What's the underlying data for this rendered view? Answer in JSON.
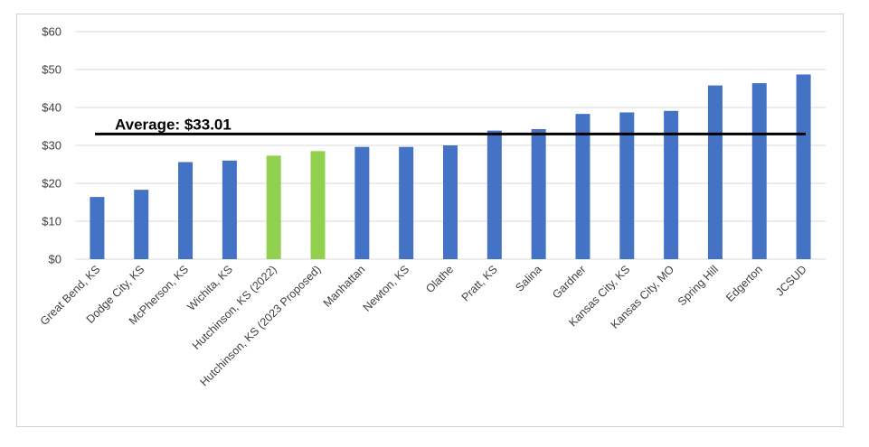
{
  "chart_data": {
    "type": "bar",
    "title": "",
    "xlabel": "",
    "ylabel": "",
    "ylim": [
      0,
      60
    ],
    "yticks": [
      0,
      10,
      20,
      30,
      40,
      50,
      60
    ],
    "ytick_labels": [
      "$0",
      "$10",
      "$20",
      "$30",
      "$40",
      "$50",
      "$60"
    ],
    "grid": true,
    "categories": [
      "Great Bend, KS",
      "Dodge City, KS",
      "McPherson, KS",
      "Wichita, KS",
      "Hutchinson, KS (2022)",
      "Hutchinson, KS (2023 Proposed)",
      "Manhattan",
      "Newton, KS",
      "Olathe",
      "Pratt, KS",
      "Salina",
      "Gardner",
      "Kansas City, KS",
      "Kansas City, MO",
      "Spring Hill",
      "Edgerton",
      "JCSUD"
    ],
    "values": [
      16.4,
      18.3,
      25.6,
      26.0,
      27.3,
      28.5,
      29.6,
      29.6,
      30.0,
      33.9,
      34.3,
      38.3,
      38.7,
      39.1,
      45.8,
      46.4,
      48.7
    ],
    "bar_colors": [
      "#4472C4",
      "#4472C4",
      "#4472C4",
      "#4472C4",
      "#92D050",
      "#92D050",
      "#4472C4",
      "#4472C4",
      "#4472C4",
      "#4472C4",
      "#4472C4",
      "#4472C4",
      "#4472C4",
      "#4472C4",
      "#4472C4",
      "#4472C4",
      "#4472C4"
    ],
    "average": {
      "value": 33.01,
      "label": "Average: $33.01",
      "color": "#000000"
    }
  }
}
